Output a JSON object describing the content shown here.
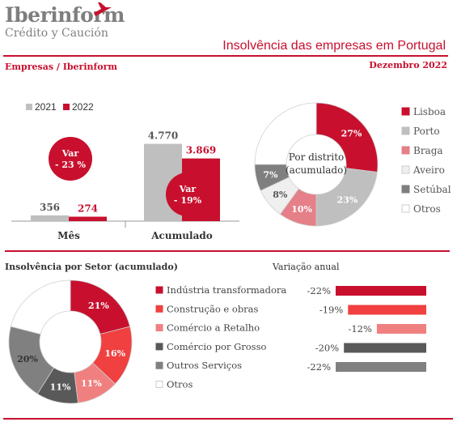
{
  "header": {
    "logo_name": "Iberinform",
    "logo_sub": "Crédito y Caución",
    "title": "Insolvência das empresas em Portugal",
    "source": "Empresas / Iberinform",
    "date": "Dezembro 2022"
  },
  "colors": {
    "red": "#c8102e",
    "gray": "#bfbfbf",
    "dark": "#595959"
  },
  "chart_data": [
    {
      "type": "bar",
      "categories": [
        "Mês",
        "Acumulado"
      ],
      "series": [
        {
          "name": "2021",
          "values": [
            356,
            4770
          ],
          "labels": [
            "356",
            "4.770"
          ],
          "color": "#bfbfbf"
        },
        {
          "name": "2022",
          "values": [
            274,
            3869
          ],
          "labels": [
            "274",
            "3.869"
          ],
          "color": "#c8102e"
        }
      ],
      "annotations": [
        {
          "line1": "Var",
          "line2": "- 23 %"
        },
        {
          "line1": "Var",
          "line2": "- 19%"
        }
      ],
      "ylim": [
        0,
        5500
      ],
      "legend": "top-left"
    },
    {
      "type": "pie",
      "center_label": [
        "Por distrito",
        "(acumulado)"
      ],
      "slices": [
        {
          "name": "Lisboa",
          "value": 27,
          "label": "27%",
          "color": "#c8102e"
        },
        {
          "name": "Porto",
          "value": 23,
          "label": "23%",
          "color": "#bfbfbf"
        },
        {
          "name": "Braga",
          "value": 10,
          "label": "10%",
          "color": "#e57f88"
        },
        {
          "name": "Aveiro",
          "value": 8,
          "label": "8%",
          "color": "#efefef"
        },
        {
          "name": "Setúbal",
          "value": 7,
          "label": "7%",
          "color": "#7f7f7f"
        },
        {
          "name": "Otros",
          "value": 25,
          "label": "",
          "color": "#ffffff"
        }
      ],
      "legend": "right"
    },
    {
      "type": "pie",
      "title": "Insolvência por Setor (acumulado)",
      "slices": [
        {
          "name": "Indústria transformadora",
          "value": 21,
          "label": "21%",
          "color": "#c8102e"
        },
        {
          "name": "Construção e obras",
          "value": 16,
          "label": "16%",
          "color": "#f04040"
        },
        {
          "name": "Comércio a Retalho",
          "value": 11,
          "label": "11%",
          "color": "#f08080"
        },
        {
          "name": "Comércio por Grosso",
          "value": 11,
          "label": "11%",
          "color": "#595959"
        },
        {
          "name": "Outros Serviços",
          "value": 20,
          "label": "20%",
          "color": "#808080"
        },
        {
          "name": "Otros",
          "value": 21,
          "label": "",
          "color": "#ffffff"
        }
      ],
      "legend": "right"
    },
    {
      "type": "bar",
      "orientation": "horizontal",
      "title": "Variação anual",
      "categories": [
        "Indústria transformadora",
        "Construção e obras",
        "Comércio a Retalho",
        "Comércio por Grosso",
        "Outros Serviços"
      ],
      "values": [
        -22,
        -19,
        -12,
        -20,
        -22
      ],
      "labels": [
        "-22%",
        "-19%",
        "-12%",
        "-20%",
        "-22%"
      ],
      "colors": [
        "#c8102e",
        "#f04040",
        "#f08080",
        "#595959",
        "#808080"
      ],
      "xlim": [
        -25,
        0
      ]
    }
  ]
}
